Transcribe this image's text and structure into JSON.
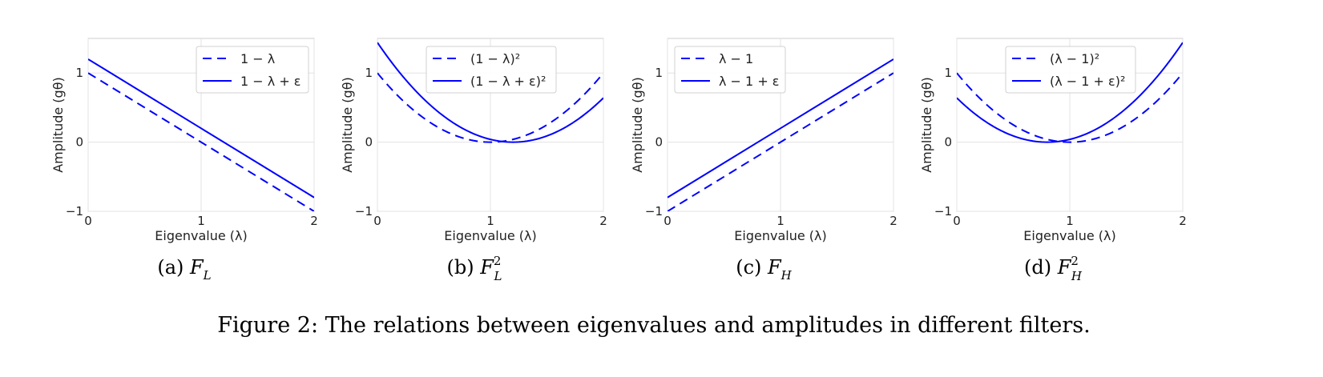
{
  "figure_caption": "Figure 2: The relations between eigenvalues and amplitudes in different filters.",
  "chart_data": [
    {
      "type": "line",
      "subcaption": {
        "label": "(a)",
        "symbol": "F",
        "sub": "L",
        "sup": ""
      },
      "xlabel": "Eigenvalue (λ)",
      "ylabel": "Amplitude (gθ)",
      "xlim": [
        0,
        2
      ],
      "ylim": [
        -1,
        1.5
      ],
      "xticks": [
        0,
        1,
        2
      ],
      "xtick_labels": [
        "0",
        "1",
        "2"
      ],
      "yticks": [
        -1,
        0,
        1
      ],
      "ytick_labels": [
        "−1",
        "0",
        "1"
      ],
      "grid": true,
      "legend_position": "top-right",
      "series": [
        {
          "name": "1 − λ",
          "style": "dashed",
          "color": "#0000ff",
          "x": [
            0,
            0.5,
            1,
            1.5,
            2
          ],
          "y": [
            1,
            0.5,
            0,
            -0.5,
            -1
          ]
        },
        {
          "name": "1 − λ + ε",
          "style": "solid",
          "color": "#0000ff",
          "x": [
            0,
            0.5,
            1,
            1.5,
            2
          ],
          "y": [
            1.2,
            0.7,
            0.2,
            -0.3,
            -0.8
          ]
        }
      ]
    },
    {
      "type": "line",
      "subcaption": {
        "label": "(b)",
        "symbol": "F",
        "sub": "L",
        "sup": "2"
      },
      "xlabel": "Eigenvalue (λ)",
      "ylabel": "Amplitude (gθ)",
      "xlim": [
        0,
        2
      ],
      "ylim": [
        -1,
        1.5
      ],
      "xticks": [
        0,
        1,
        2
      ],
      "xtick_labels": [
        "0",
        "1",
        "2"
      ],
      "yticks": [
        -1,
        0,
        1
      ],
      "ytick_labels": [
        "−1",
        "0",
        "1"
      ],
      "grid": true,
      "legend_position": "top-center",
      "series": [
        {
          "name": "(1 − λ)²",
          "style": "dashed",
          "color": "#0000ff",
          "x": [
            0,
            0.25,
            0.5,
            0.75,
            1,
            1.25,
            1.5,
            1.75,
            2
          ],
          "y": [
            1,
            0.5625,
            0.25,
            0.0625,
            0,
            0.0625,
            0.25,
            0.5625,
            1
          ]
        },
        {
          "name": "(1 − λ + ε)²",
          "style": "solid",
          "color": "#0000ff",
          "x": [
            0,
            0.25,
            0.5,
            0.75,
            1,
            1.2,
            1.5,
            1.75,
            2
          ],
          "y": [
            1.44,
            0.9025,
            0.49,
            0.2025,
            0.04,
            0,
            0.09,
            0.3025,
            0.64
          ]
        }
      ]
    },
    {
      "type": "line",
      "subcaption": {
        "label": "(c)",
        "symbol": "F",
        "sub": "H",
        "sup": ""
      },
      "xlabel": "Eigenvalue (λ)",
      "ylabel": "Amplitude (gθ)",
      "xlim": [
        0,
        2
      ],
      "ylim": [
        -1,
        1.5
      ],
      "xticks": [
        0,
        1,
        2
      ],
      "xtick_labels": [
        "0",
        "1",
        "2"
      ],
      "yticks": [
        -1,
        0,
        1
      ],
      "ytick_labels": [
        "−1",
        "0",
        "1"
      ],
      "grid": true,
      "legend_position": "top-left",
      "series": [
        {
          "name": "λ − 1",
          "style": "dashed",
          "color": "#0000ff",
          "x": [
            0,
            0.5,
            1,
            1.5,
            2
          ],
          "y": [
            -1,
            -0.5,
            0,
            0.5,
            1
          ]
        },
        {
          "name": "λ − 1 + ε",
          "style": "solid",
          "color": "#0000ff",
          "x": [
            0,
            0.5,
            1,
            1.5,
            2
          ],
          "y": [
            -0.8,
            -0.3,
            0.2,
            0.7,
            1.2
          ]
        }
      ]
    },
    {
      "type": "line",
      "subcaption": {
        "label": "(d)",
        "symbol": "F",
        "sub": "H",
        "sup": "2"
      },
      "xlabel": "Eigenvalue (λ)",
      "ylabel": "Amplitude (gθ)",
      "xlim": [
        0,
        2
      ],
      "ylim": [
        -1,
        1.5
      ],
      "xticks": [
        0,
        1,
        2
      ],
      "xtick_labels": [
        "0",
        "1",
        "2"
      ],
      "yticks": [
        -1,
        0,
        1
      ],
      "ytick_labels": [
        "−1",
        "0",
        "1"
      ],
      "grid": true,
      "legend_position": "top-center",
      "series": [
        {
          "name": "(λ − 1)²",
          "style": "dashed",
          "color": "#0000ff",
          "x": [
            0,
            0.25,
            0.5,
            0.75,
            1,
            1.25,
            1.5,
            1.75,
            2
          ],
          "y": [
            1,
            0.5625,
            0.25,
            0.0625,
            0,
            0.0625,
            0.25,
            0.5625,
            1
          ]
        },
        {
          "name": "(λ − 1 + ε)²",
          "style": "solid",
          "color": "#0000ff",
          "x": [
            0,
            0.25,
            0.5,
            0.8,
            1,
            1.25,
            1.5,
            1.75,
            2
          ],
          "y": [
            0.64,
            0.3025,
            0.09,
            0,
            0.04,
            0.2025,
            0.49,
            0.9025,
            1.44
          ]
        }
      ]
    }
  ]
}
